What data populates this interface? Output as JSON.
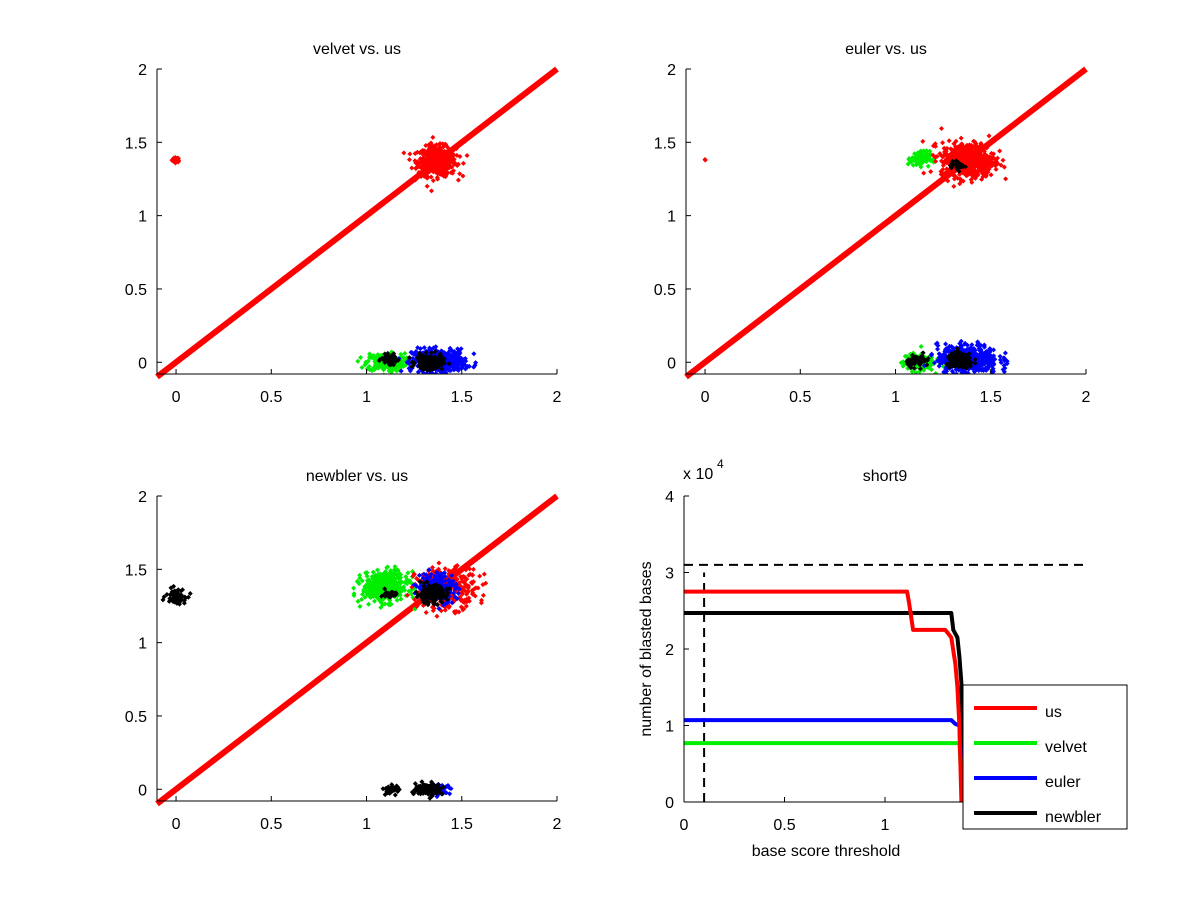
{
  "figure": {
    "background": "#ffffff"
  },
  "chart_data": [
    {
      "type": "scatter",
      "title": "velvet vs. us",
      "xlabel": "",
      "ylabel": "",
      "xlim": [
        -0.1,
        2
      ],
      "ylim": [
        -0.08,
        2
      ],
      "xticks": [
        0,
        0.5,
        1,
        1.5,
        2
      ],
      "xtick_labels": [
        "0",
        "0.5",
        "1",
        "1.5",
        "2"
      ],
      "yticks": [
        0,
        0.5,
        1,
        1.5,
        2
      ],
      "ytick_labels": [
        "0",
        "0.5",
        "1",
        "1.5",
        "2"
      ],
      "grid": false,
      "diagonal": {
        "from": [
          -0.1,
          -0.1
        ],
        "to": [
          2,
          2
        ],
        "color": "#ff0000"
      },
      "clusters": [
        {
          "color": "#ff0000",
          "center": [
            0.0,
            1.38
          ],
          "spread": [
            0.01,
            0.008
          ],
          "n": 40
        },
        {
          "color": "#ff0000",
          "center": [
            1.37,
            1.37
          ],
          "spread": [
            0.05,
            0.05
          ],
          "n": 500
        },
        {
          "color": "#00ee00",
          "center": [
            1.1,
            0.0
          ],
          "spread": [
            0.05,
            0.03
          ],
          "n": 260
        },
        {
          "color": "#0000ff",
          "center": [
            1.38,
            0.01
          ],
          "spread": [
            0.07,
            0.04
          ],
          "n": 420
        },
        {
          "color": "#000000",
          "center": [
            1.12,
            0.02
          ],
          "spread": [
            0.02,
            0.015
          ],
          "n": 60
        },
        {
          "color": "#000000",
          "center": [
            1.33,
            0.0
          ],
          "spread": [
            0.035,
            0.025
          ],
          "n": 160
        }
      ]
    },
    {
      "type": "scatter",
      "title": "euler vs. us",
      "xlabel": "",
      "ylabel": "",
      "xlim": [
        -0.1,
        2
      ],
      "ylim": [
        -0.08,
        2
      ],
      "xticks": [
        0,
        0.5,
        1,
        1.5,
        2
      ],
      "xtick_labels": [
        "0",
        "0.5",
        "1",
        "1.5",
        "2"
      ],
      "yticks": [
        0,
        0.5,
        1,
        1.5,
        2
      ],
      "ytick_labels": [
        "0",
        "0.5",
        "1",
        "1.5",
        "2"
      ],
      "grid": false,
      "diagonal": {
        "from": [
          -0.1,
          -0.1
        ],
        "to": [
          2,
          2
        ],
        "color": "#ff0000"
      },
      "clusters": [
        {
          "color": "#ff0000",
          "center": [
            0.0,
            1.38
          ],
          "spread": [
            0.002,
            0.002
          ],
          "n": 2
        },
        {
          "color": "#00ee00",
          "center": [
            1.13,
            1.39
          ],
          "spread": [
            0.025,
            0.025
          ],
          "n": 120
        },
        {
          "color": "#ff0000",
          "center": [
            1.38,
            1.38
          ],
          "spread": [
            0.07,
            0.06
          ],
          "n": 550
        },
        {
          "color": "#000000",
          "center": [
            1.33,
            1.34
          ],
          "spread": [
            0.02,
            0.015
          ],
          "n": 25
        },
        {
          "color": "#00ee00",
          "center": [
            1.12,
            0.0
          ],
          "spread": [
            0.04,
            0.03
          ],
          "n": 160
        },
        {
          "color": "#0000ff",
          "center": [
            1.38,
            0.02
          ],
          "spread": [
            0.08,
            0.05
          ],
          "n": 450
        },
        {
          "color": "#000000",
          "center": [
            1.12,
            0.01
          ],
          "spread": [
            0.03,
            0.02
          ],
          "n": 60
        },
        {
          "color": "#000000",
          "center": [
            1.34,
            0.01
          ],
          "spread": [
            0.035,
            0.025
          ],
          "n": 160
        }
      ]
    },
    {
      "type": "scatter",
      "title": "newbler vs. us",
      "xlabel": "",
      "ylabel": "",
      "xlim": [
        -0.1,
        2
      ],
      "ylim": [
        -0.08,
        2
      ],
      "xticks": [
        0,
        0.5,
        1,
        1.5,
        2
      ],
      "xtick_labels": [
        "0",
        "0.5",
        "1",
        "1.5",
        "2"
      ],
      "yticks": [
        0,
        0.5,
        1,
        1.5,
        2
      ],
      "ytick_labels": [
        "0",
        "0.5",
        "1",
        "1.5",
        "2"
      ],
      "grid": false,
      "diagonal": {
        "from": [
          -0.1,
          -0.1
        ],
        "to": [
          2,
          2
        ],
        "color": "#ff0000"
      },
      "clusters": [
        {
          "color": "#000000",
          "center": [
            0.0,
            1.32
          ],
          "spread": [
            0.025,
            0.025
          ],
          "n": 70
        },
        {
          "color": "#00ee00",
          "center": [
            1.1,
            1.38
          ],
          "spread": [
            0.06,
            0.05
          ],
          "n": 420
        },
        {
          "color": "#ff0000",
          "center": [
            1.42,
            1.37
          ],
          "spread": [
            0.08,
            0.07
          ],
          "n": 320
        },
        {
          "color": "#0000ff",
          "center": [
            1.37,
            1.38
          ],
          "spread": [
            0.05,
            0.05
          ],
          "n": 220
        },
        {
          "color": "#000000",
          "center": [
            1.12,
            1.33
          ],
          "spread": [
            0.02,
            0.012
          ],
          "n": 30
        },
        {
          "color": "#000000",
          "center": [
            1.34,
            1.33
          ],
          "spread": [
            0.04,
            0.03
          ],
          "n": 160
        },
        {
          "color": "#000000",
          "center": [
            1.13,
            0.0
          ],
          "spread": [
            0.02,
            0.015
          ],
          "n": 50
        },
        {
          "color": "#0000ff",
          "center": [
            1.38,
            0.0
          ],
          "spread": [
            0.03,
            0.015
          ],
          "n": 60
        },
        {
          "color": "#000000",
          "center": [
            1.33,
            0.0
          ],
          "spread": [
            0.035,
            0.018
          ],
          "n": 180
        }
      ]
    },
    {
      "type": "line",
      "title": "short9",
      "xlabel": "base score threshold",
      "ylabel": "number of blasted bases",
      "y_multiplier_label": "x 10",
      "y_multiplier_exponent": "4",
      "xlim": [
        0,
        2
      ],
      "ylim": [
        0,
        40000
      ],
      "xticks": [
        0,
        0.5,
        1
      ],
      "xtick_labels": [
        "0",
        "0.5",
        "1"
      ],
      "yticks": [
        0,
        10000,
        20000,
        30000,
        40000
      ],
      "ytick_labels": [
        "0",
        "1",
        "2",
        "3",
        "4"
      ],
      "grid": false,
      "legend_position": "bottom-right",
      "reference_lines": [
        {
          "orientation": "horizontal",
          "value": 31000,
          "style": "dashed",
          "color": "#000000",
          "range": [
            0,
            2
          ]
        },
        {
          "orientation": "vertical",
          "value": 0.1,
          "style": "dashed",
          "color": "#000000",
          "range": [
            0,
            30000
          ]
        }
      ],
      "series": [
        {
          "name": "us",
          "color": "#ff0000",
          "x": [
            0,
            1.11,
            1.12,
            1.14,
            1.3,
            1.33,
            1.35,
            1.36,
            1.37,
            1.38
          ],
          "y": [
            27500,
            27500,
            26000,
            22500,
            22500,
            21500,
            18000,
            15000,
            10000,
            0
          ]
        },
        {
          "name": "velvet",
          "color": "#00ee00",
          "x": [
            0,
            1.37,
            1.38,
            1.39
          ],
          "y": [
            7700,
            7700,
            3000,
            0
          ]
        },
        {
          "name": "euler",
          "color": "#0000ff",
          "x": [
            0,
            1.33,
            1.35,
            1.37,
            1.38,
            1.39
          ],
          "y": [
            10700,
            10700,
            10200,
            10000,
            3000,
            0
          ]
        },
        {
          "name": "newbler",
          "color": "#000000",
          "x": [
            0,
            1.33,
            1.34,
            1.36,
            1.37,
            1.38,
            1.39
          ],
          "y": [
            24700,
            24700,
            22500,
            21500,
            19000,
            15500,
            0
          ]
        }
      ]
    }
  ]
}
